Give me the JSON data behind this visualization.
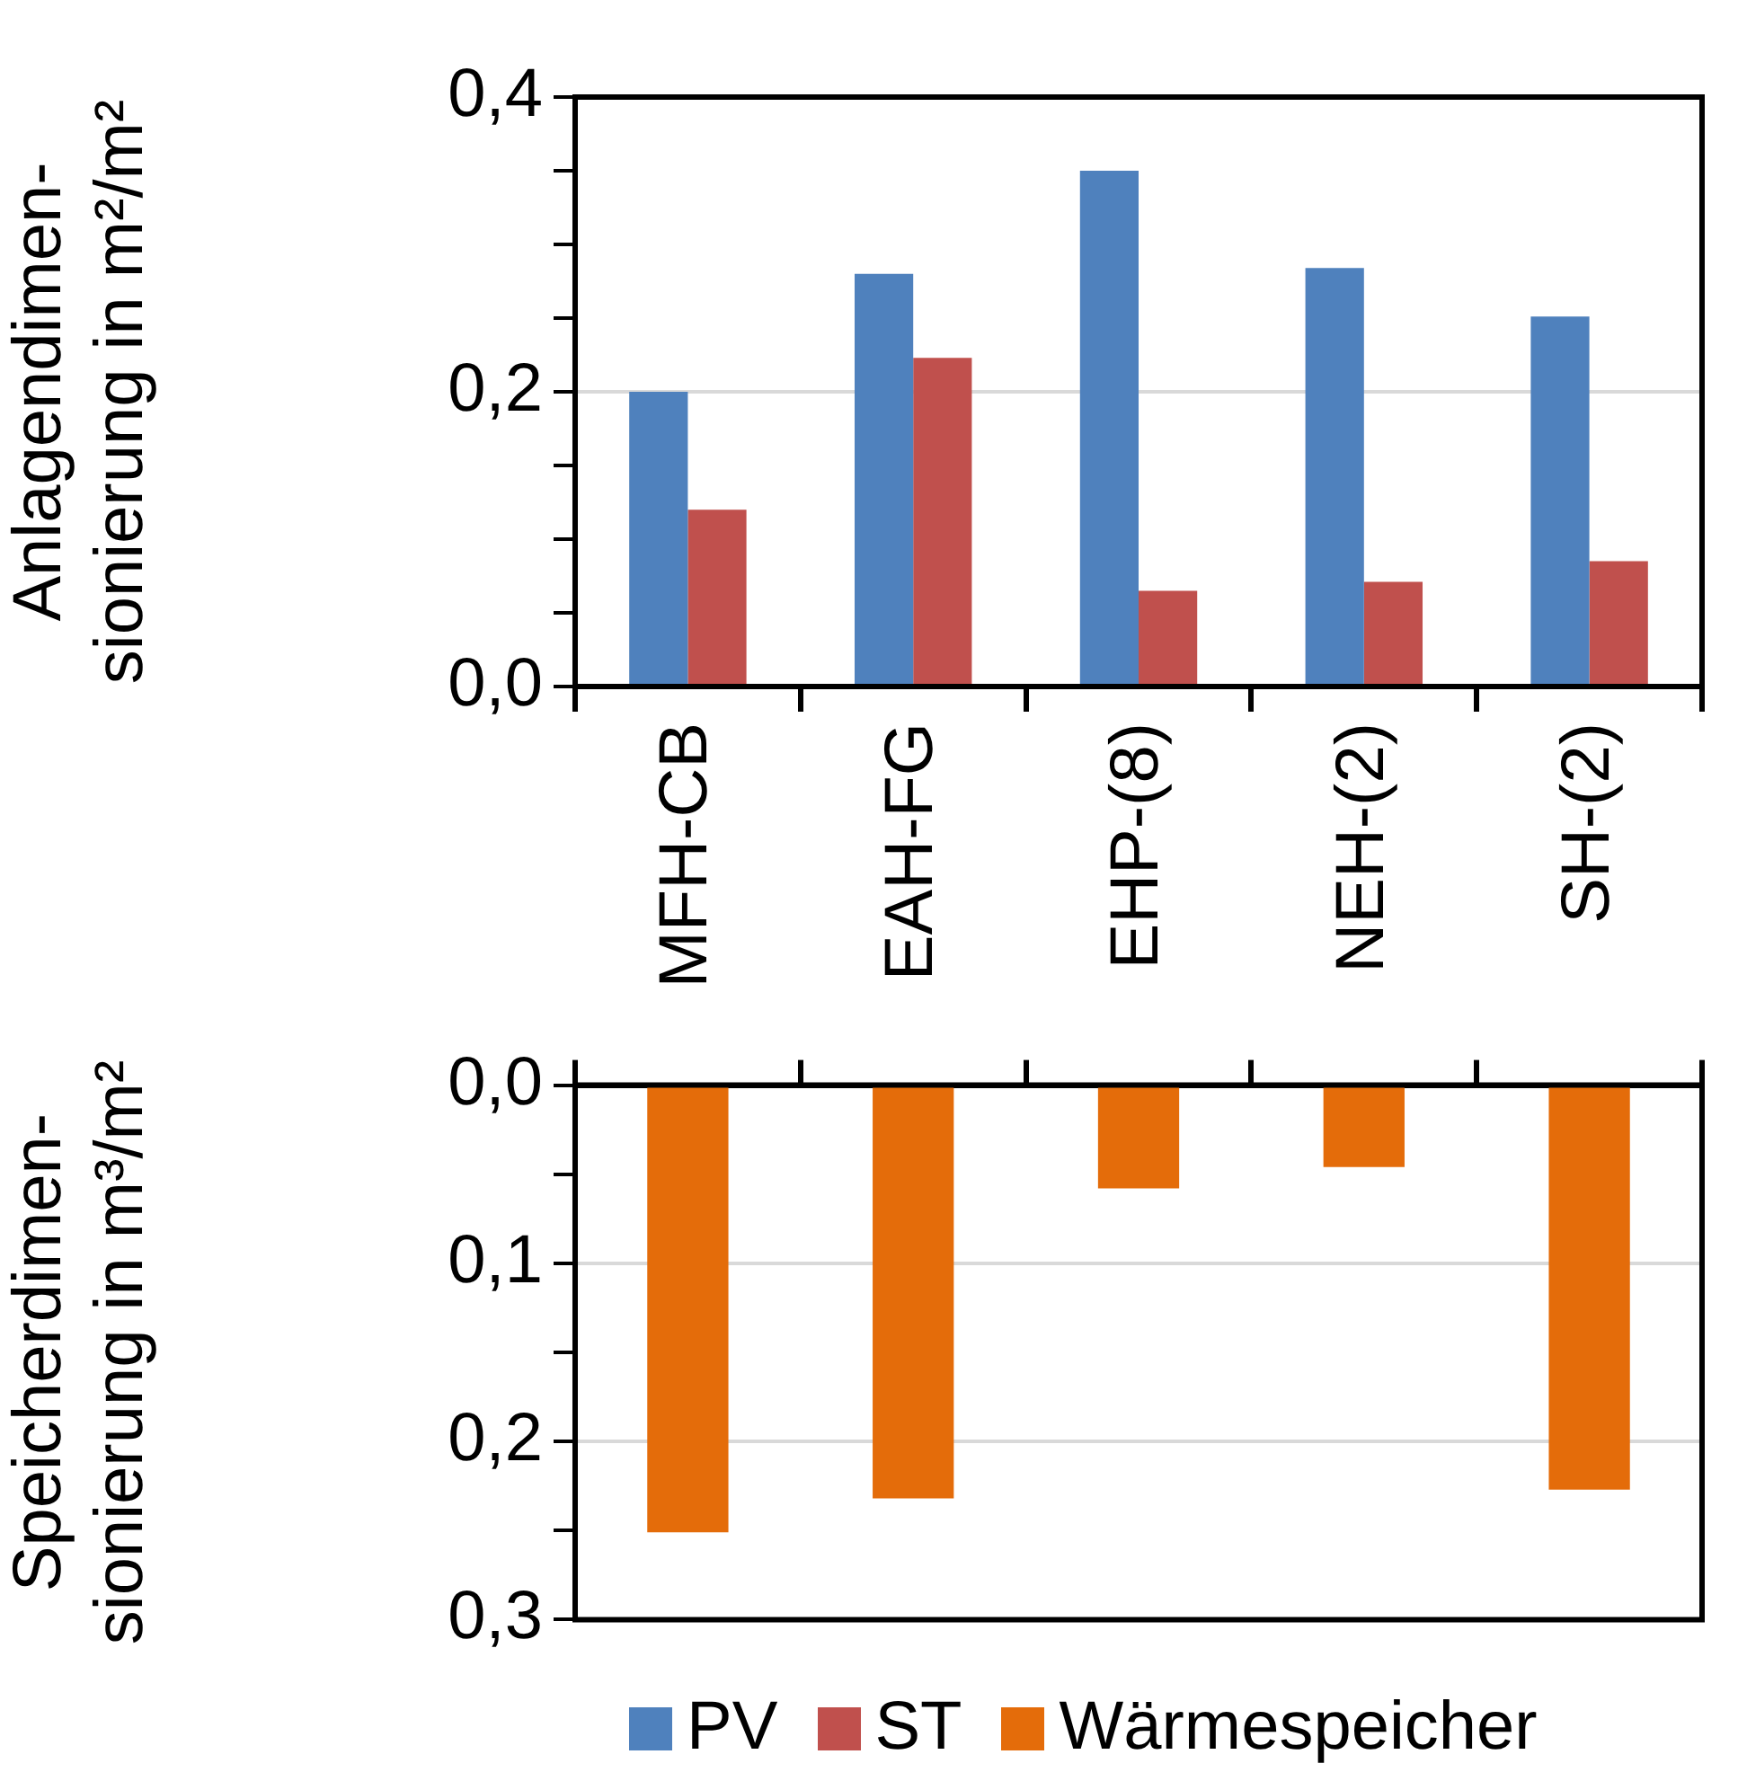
{
  "chart_data": [
    {
      "type": "bar",
      "ylabel": "Anlagendimen-\nsionierung in m²/m²",
      "categories": [
        "MFH-CB",
        "EAH-FG",
        "EHP-(8)",
        "NEH-(2)",
        "SH-(2)"
      ],
      "series": [
        {
          "name": "PV",
          "color": "#4f81bd",
          "values": [
            0.2,
            0.28,
            0.35,
            0.284,
            0.251
          ]
        },
        {
          "name": "ST",
          "color": "#c0504d",
          "values": [
            0.12,
            0.223,
            0.065,
            0.071,
            0.085
          ]
        }
      ],
      "ylim": [
        0,
        0.4
      ],
      "yticks": [
        {
          "value": 0,
          "label": "0,0"
        },
        {
          "value": 0.05,
          "label": null
        },
        {
          "value": 0.1,
          "label": null
        },
        {
          "value": 0.15,
          "label": null
        },
        {
          "value": 0.2,
          "label": "0,2"
        },
        {
          "value": 0.25,
          "label": null
        },
        {
          "value": 0.3,
          "label": null
        },
        {
          "value": 0.35,
          "label": null
        },
        {
          "value": 0.4,
          "label": "0,4"
        }
      ],
      "grid": "y",
      "legend": "bottom"
    },
    {
      "type": "bar",
      "ylabel": "Speicherdimen-\nsionierung in m³/m²",
      "categories": [
        null,
        null,
        null,
        null,
        null
      ],
      "series": [
        {
          "name": "Wärmespeicher",
          "color": "#e46c0a",
          "values": [
            0.251,
            0.232,
            0.058,
            0.046,
            0.227
          ]
        }
      ],
      "ylim": [
        0.3,
        0
      ],
      "yticks": [
        {
          "value": 0,
          "label": "0,0"
        },
        {
          "value": 0.05,
          "label": null
        },
        {
          "value": 0.1,
          "label": "0,1"
        },
        {
          "value": 0.15,
          "label": null
        },
        {
          "value": 0.2,
          "label": "0,2"
        },
        {
          "value": 0.25,
          "label": null
        },
        {
          "value": 0.3,
          "label": "0,3"
        }
      ],
      "grid": "y",
      "legend": "bottom"
    }
  ]
}
